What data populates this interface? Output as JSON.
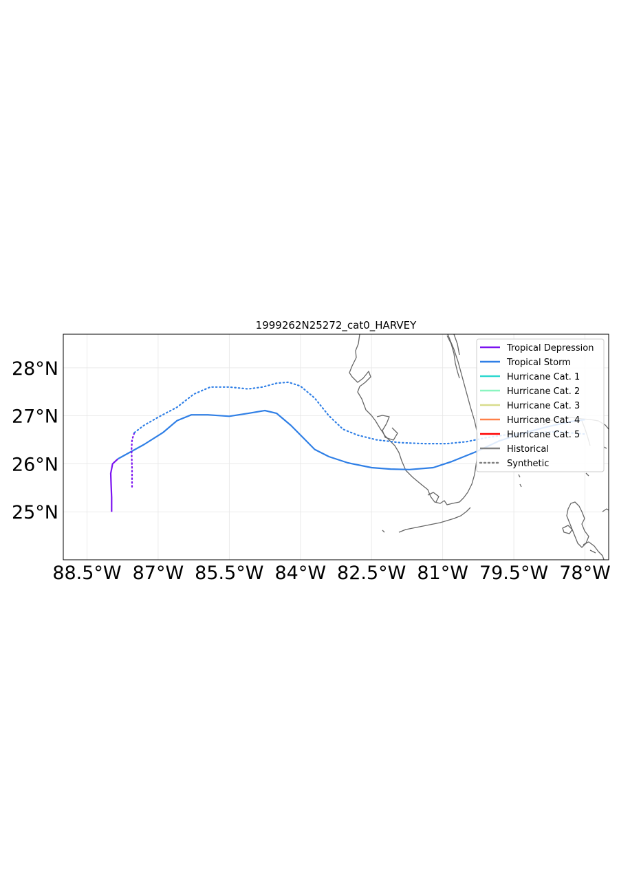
{
  "chart_data": {
    "type": "line",
    "title": "1999262N25272_cat0_HARVEY",
    "xlim": [
      -89.0,
      -77.5
    ],
    "ylim": [
      24.0,
      28.7
    ],
    "grid": true,
    "x_ticks": [
      {
        "value": -88.5,
        "label": "88.5°W"
      },
      {
        "value": -87.0,
        "label": "87°W"
      },
      {
        "value": -85.5,
        "label": "85.5°W"
      },
      {
        "value": -84.0,
        "label": "84°W"
      },
      {
        "value": -82.5,
        "label": "82.5°W"
      },
      {
        "value": -81.0,
        "label": "81°W"
      },
      {
        "value": -79.5,
        "label": "79.5°W"
      },
      {
        "value": -78.0,
        "label": "78°W"
      }
    ],
    "y_ticks": [
      {
        "value": 25,
        "label": "25°N"
      },
      {
        "value": 26,
        "label": "26°N"
      },
      {
        "value": 27,
        "label": "27°N"
      },
      {
        "value": 28,
        "label": "28°N"
      }
    ],
    "legend": {
      "position": "top-right",
      "entries": [
        {
          "label": "Tropical Depression",
          "color": "#7b12f0",
          "style": "solid"
        },
        {
          "label": "Tropical Storm",
          "color": "#2f7fe6",
          "style": "solid"
        },
        {
          "label": "Hurricane Cat. 1",
          "color": "#2fd8d0",
          "style": "solid"
        },
        {
          "label": "Hurricane Cat. 2",
          "color": "#8af5c0",
          "style": "solid"
        },
        {
          "label": "Hurricane Cat. 3",
          "color": "#d8dc8c",
          "style": "solid"
        },
        {
          "label": "Hurricane Cat. 4",
          "color": "#ff8048",
          "style": "solid"
        },
        {
          "label": "Hurricane Cat. 5",
          "color": "#ff0000",
          "style": "solid"
        },
        {
          "label": "Historical",
          "color": "#808080",
          "style": "solid"
        },
        {
          "label": "Synthetic",
          "color": "#808080",
          "style": "dotted"
        }
      ]
    },
    "series": [
      {
        "name": "Historical",
        "style": "solid",
        "segments": [
          {
            "category": "Tropical Depression",
            "color": "#7b12f0",
            "points": [
              [
                -87.98,
                25.0
              ],
              [
                -87.98,
                25.3
              ],
              [
                -87.99,
                25.55
              ],
              [
                -88.0,
                25.8
              ],
              [
                -87.96,
                26.0
              ],
              [
                -87.85,
                26.1
              ]
            ]
          },
          {
            "category": "Tropical Storm",
            "color": "#2f7fe6",
            "points": [
              [
                -87.85,
                26.1
              ],
              [
                -87.3,
                26.4
              ],
              [
                -86.9,
                26.65
              ],
              [
                -86.6,
                26.9
              ],
              [
                -86.3,
                27.02
              ],
              [
                -85.95,
                27.02
              ],
              [
                -85.5,
                26.99
              ],
              [
                -85.1,
                27.05
              ],
              [
                -84.75,
                27.11
              ],
              [
                -84.5,
                27.05
              ],
              [
                -84.2,
                26.8
              ],
              [
                -83.9,
                26.5
              ],
              [
                -83.7,
                26.3
              ],
              [
                -83.4,
                26.15
              ],
              [
                -83.0,
                26.02
              ],
              [
                -82.5,
                25.92
              ],
              [
                -82.1,
                25.89
              ],
              [
                -81.7,
                25.88
              ],
              [
                -81.2,
                25.92
              ],
              [
                -80.8,
                26.05
              ],
              [
                -80.3,
                26.25
              ],
              [
                -79.8,
                26.48
              ],
              [
                -79.3,
                26.64
              ],
              [
                -78.8,
                26.77
              ],
              [
                -78.3,
                26.88
              ],
              [
                -78.0,
                26.92
              ]
            ]
          }
        ]
      },
      {
        "name": "Synthetic",
        "style": "dotted",
        "segments": [
          {
            "category": "Tropical Depression",
            "color": "#7b12f0",
            "points": [
              [
                -87.55,
                25.52
              ],
              [
                -87.55,
                25.9
              ],
              [
                -87.56,
                26.3
              ],
              [
                -87.55,
                26.5
              ],
              [
                -87.5,
                26.65
              ]
            ]
          },
          {
            "category": "Tropical Storm",
            "color": "#2f7fe6",
            "points": [
              [
                -87.5,
                26.65
              ],
              [
                -87.3,
                26.8
              ],
              [
                -87.0,
                26.97
              ],
              [
                -86.6,
                27.18
              ],
              [
                -86.25,
                27.45
              ],
              [
                -85.9,
                27.6
              ],
              [
                -85.5,
                27.6
              ],
              [
                -85.1,
                27.56
              ],
              [
                -84.8,
                27.6
              ],
              [
                -84.5,
                27.68
              ],
              [
                -84.25,
                27.7
              ],
              [
                -84.0,
                27.62
              ],
              [
                -83.7,
                27.37
              ],
              [
                -83.4,
                27.0
              ],
              [
                -83.1,
                26.72
              ],
              [
                -82.8,
                26.6
              ],
              [
                -82.4,
                26.5
              ],
              [
                -81.9,
                26.44
              ],
              [
                -81.4,
                26.42
              ],
              [
                -80.9,
                26.42
              ],
              [
                -80.5,
                26.46
              ],
              [
                -80.1,
                26.54
              ],
              [
                -79.7,
                26.6
              ],
              [
                -79.2,
                26.64
              ],
              [
                -78.6,
                26.67
              ],
              [
                -78.0,
                26.62
              ]
            ]
          }
        ]
      }
    ]
  }
}
